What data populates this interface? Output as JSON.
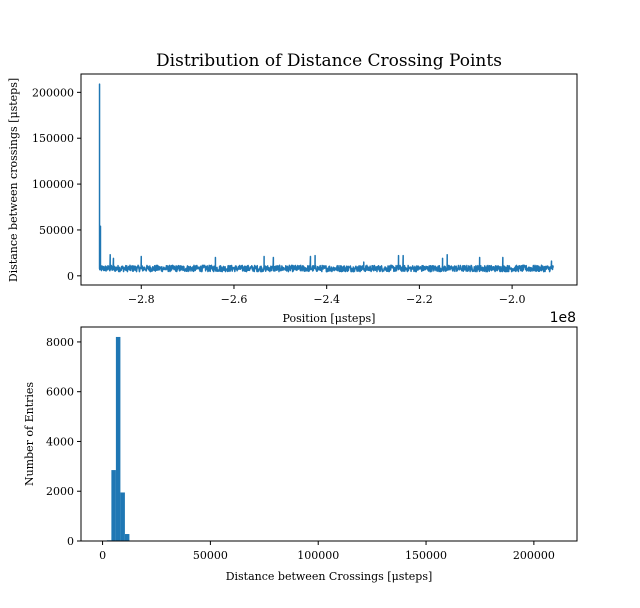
{
  "chart_data": [
    {
      "type": "line",
      "title": "Distribution of Distance Crossing Points",
      "xlabel": "Position [μsteps]",
      "ylabel": "Distance between crossings [μsteps]",
      "x_offset_label": "1e8",
      "xlim": [
        -2.93,
        -1.86
      ],
      "ylim": [
        -10000,
        220000
      ],
      "xticks": [
        -2.8,
        -2.6,
        -2.4,
        -2.2,
        -2.0
      ],
      "xtick_labels": [
        "−2.8",
        "−2.6",
        "−2.4",
        "−2.2",
        "−2.0"
      ],
      "yticks": [
        0,
        50000,
        100000,
        150000,
        200000
      ],
      "ytick_labels": [
        "0",
        "50000",
        "100000",
        "150000",
        "200000"
      ],
      "color": "#1f77b4",
      "x_range": [
        -2.89,
        -1.91
      ],
      "baseline": 8000,
      "noise_band": [
        4500,
        11500
      ],
      "spikes": [
        {
          "x": -2.89,
          "y": 209000
        },
        {
          "x": -2.888,
          "y": 54000
        },
        {
          "x": -2.867,
          "y": 23000
        },
        {
          "x": -2.86,
          "y": 19000
        },
        {
          "x": -2.8,
          "y": 21000
        },
        {
          "x": -2.64,
          "y": 20000
        },
        {
          "x": -2.535,
          "y": 21000
        },
        {
          "x": -2.515,
          "y": 20000
        },
        {
          "x": -2.435,
          "y": 21000
        },
        {
          "x": -2.425,
          "y": 22000
        },
        {
          "x": -2.32,
          "y": 15000
        },
        {
          "x": -2.245,
          "y": 22000
        },
        {
          "x": -2.235,
          "y": 22000
        },
        {
          "x": -2.15,
          "y": 19000
        },
        {
          "x": -2.14,
          "y": 23000
        },
        {
          "x": -2.07,
          "y": 20000
        },
        {
          "x": -2.02,
          "y": 20000
        },
        {
          "x": -1.915,
          "y": 16000
        }
      ]
    },
    {
      "type": "bar",
      "xlabel": "Distance between Crossings [μsteps]",
      "ylabel": "Number of Entries",
      "xlim": [
        -10000,
        220000
      ],
      "ylim": [
        0,
        8600
      ],
      "xticks": [
        0,
        50000,
        100000,
        150000,
        200000
      ],
      "xtick_labels": [
        "0",
        "50000",
        "100000",
        "150000",
        "200000"
      ],
      "yticks": [
        0,
        2000,
        4000,
        6000,
        8000
      ],
      "ytick_labels": [
        "0",
        "2000",
        "4000",
        "6000",
        "8000"
      ],
      "color": "#1f77b4",
      "bin_width": 2090,
      "bins": [
        {
          "x0": 2000,
          "value": 30
        },
        {
          "x0": 4090,
          "value": 2850
        },
        {
          "x0": 6180,
          "value": 8200
        },
        {
          "x0": 8270,
          "value": 1950
        },
        {
          "x0": 10360,
          "value": 280
        },
        {
          "x0": 12450,
          "value": 20
        }
      ]
    }
  ]
}
